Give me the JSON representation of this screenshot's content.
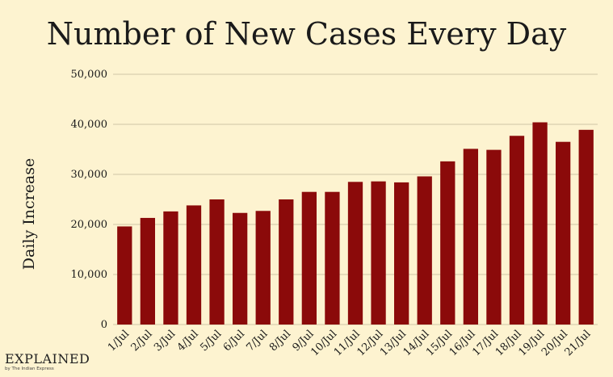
{
  "chart_data": {
    "type": "bar",
    "title": "Number of New Cases Every Day",
    "xlabel": "",
    "ylabel": "Daily Increase",
    "ylim": [
      0,
      50000
    ],
    "yticks": [
      0,
      10000,
      20000,
      30000,
      40000,
      50000
    ],
    "ytick_labels": [
      "0",
      "10,000",
      "20,000",
      "30,000",
      "40,000",
      "50,000"
    ],
    "grid": true,
    "categories": [
      "1/Jul",
      "2/Jul",
      "3/Jul",
      "4/Jul",
      "5/Jul",
      "6/Jul",
      "7/Jul",
      "8/Jul",
      "9/Jul",
      "10/Jul",
      "11/Jul",
      "12/Jul",
      "13/Jul",
      "14/Jul",
      "15/Jul",
      "16/Jul",
      "17/Jul",
      "18/Jul",
      "19/Jul",
      "20/Jul",
      "21/Jul"
    ],
    "values": [
      19600,
      21300,
      22600,
      23800,
      25000,
      22300,
      22700,
      25000,
      26500,
      26500,
      28500,
      28600,
      28400,
      29600,
      32600,
      35100,
      34900,
      37700,
      40400,
      36500,
      38900
    ],
    "bar_color": "#8b0a0a"
  },
  "logo": {
    "main": "EXPLAINED",
    "sub": "by The Indian Express"
  }
}
